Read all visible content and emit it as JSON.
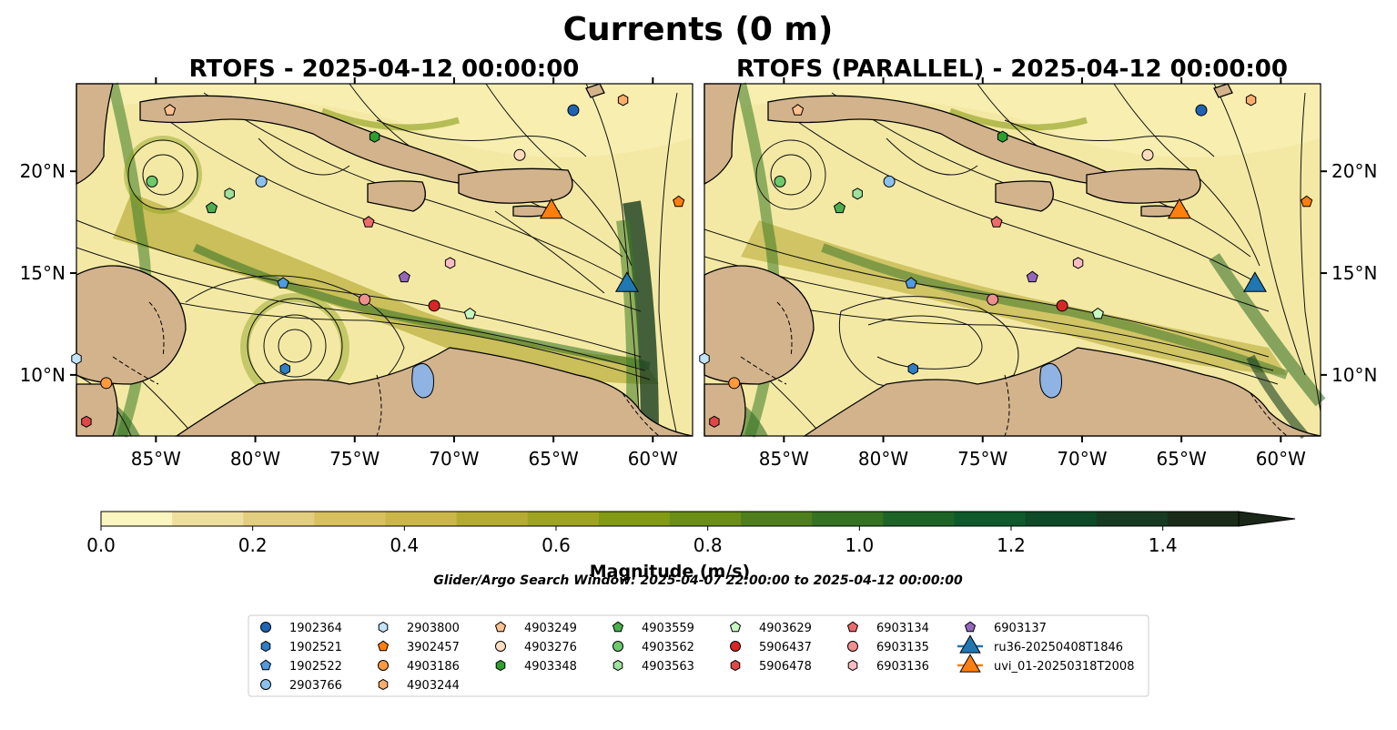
{
  "figure": {
    "title": "Currents (0 m)",
    "search_window": "Glider/Argo Search Window: 2025-04-07 22:00:00 to 2025-04-12 00:00:00"
  },
  "chart_data": {
    "type": "heatmap",
    "variable": "surface current magnitude with streamlines",
    "x_range": [
      -89.0,
      -58.0
    ],
    "y_range": [
      7.0,
      24.3
    ],
    "x_ticks": [
      -85,
      -80,
      -75,
      -70,
      -65,
      -60
    ],
    "x_tick_labels": [
      "85°W",
      "80°W",
      "75°W",
      "70°W",
      "65°W",
      "60°W"
    ],
    "y_ticks": [
      10,
      15,
      20
    ],
    "y_tick_labels": [
      "10°N",
      "15°N",
      "20°N"
    ],
    "panels": [
      {
        "title": "RTOFS - 2025-04-12 00:00:00",
        "yaxis_side": "left"
      },
      {
        "title": "RTOFS (PARALLEL) - 2025-04-12 00:00:00",
        "yaxis_side": "right"
      }
    ],
    "colorbar": {
      "label": "Magnitude (m/s)",
      "range": [
        0.0,
        1.5
      ],
      "extend": "max",
      "ticks": [
        0.0,
        0.2,
        0.4,
        0.6,
        0.8,
        1.0,
        1.2,
        1.4
      ],
      "tick_labels": [
        "0.0",
        "0.2",
        "0.4",
        "0.6",
        "0.8",
        "1.0",
        "1.2",
        "1.4"
      ],
      "colors": [
        "#fbf6c0",
        "#efdf9f",
        "#e3cd7e",
        "#d8c05f",
        "#cbb649",
        "#b6ab32",
        "#9ea421",
        "#829a14",
        "#6a8e16",
        "#4f7f1c",
        "#357222",
        "#1d6426",
        "#0e5a2a",
        "#0e4a27",
        "#173a22",
        "#1a2b1a"
      ],
      "extend_color": "#1a2617"
    },
    "series": [
      {
        "name": "1902364",
        "marker": "circle",
        "color": "#1f63b4",
        "lon": -64.0,
        "lat": 23.0
      },
      {
        "name": "1902521",
        "marker": "hexagon",
        "color": "#2e7ec6",
        "lon": -78.5,
        "lat": 10.3
      },
      {
        "name": "1902522",
        "marker": "pentagon",
        "color": "#4f9ae0",
        "lon": -78.6,
        "lat": 14.5
      },
      {
        "name": "2903766",
        "marker": "circle",
        "color": "#8cc1ee",
        "lon": -79.7,
        "lat": 19.5
      },
      {
        "name": "2903800",
        "marker": "hexagon",
        "color": "#c3e3fb",
        "lon": -89.0,
        "lat": 10.8
      },
      {
        "name": "3902457",
        "marker": "pentagon",
        "color": "#ff7f0e",
        "lon": -58.7,
        "lat": 18.5
      },
      {
        "name": "4903186",
        "marker": "circle",
        "color": "#ff9a3c",
        "lon": -87.5,
        "lat": 9.6
      },
      {
        "name": "4903244",
        "marker": "hexagon",
        "color": "#ffad6b",
        "lon": -61.5,
        "lat": 23.5
      },
      {
        "name": "4903249",
        "marker": "pentagon",
        "color": "#ffc08f",
        "lon": -84.3,
        "lat": 23.0
      },
      {
        "name": "4903276",
        "marker": "circle",
        "color": "#ffdcbf",
        "lon": -66.7,
        "lat": 20.8
      },
      {
        "name": "4903348",
        "marker": "hexagon",
        "color": "#2ca02c",
        "lon": -74.0,
        "lat": 21.7
      },
      {
        "name": "4903559",
        "marker": "pentagon",
        "color": "#4bb04b",
        "lon": -82.2,
        "lat": 18.2
      },
      {
        "name": "4903562",
        "marker": "circle",
        "color": "#6cc96c",
        "lon": -85.2,
        "lat": 19.5
      },
      {
        "name": "4903563",
        "marker": "hexagon",
        "color": "#9ee09e",
        "lon": -81.3,
        "lat": 18.9
      },
      {
        "name": "4903629",
        "marker": "pentagon",
        "color": "#c9f7c4",
        "lon": -69.2,
        "lat": 13.0
      },
      {
        "name": "5906437",
        "marker": "circle",
        "color": "#d62728",
        "lon": -71.0,
        "lat": 13.4
      },
      {
        "name": "5906478",
        "marker": "hexagon",
        "color": "#e04848",
        "lon": -88.5,
        "lat": 7.7
      },
      {
        "name": "6903134",
        "marker": "pentagon",
        "color": "#ec6b6b",
        "lon": -74.3,
        "lat": 17.5
      },
      {
        "name": "6903135",
        "marker": "circle",
        "color": "#f08f8f",
        "lon": -74.5,
        "lat": 13.7
      },
      {
        "name": "6903136",
        "marker": "hexagon",
        "color": "#f8bcc4",
        "lon": -70.2,
        "lat": 15.5
      },
      {
        "name": "6903137",
        "marker": "pentagon",
        "color": "#9467bd",
        "lon": -72.5,
        "lat": 14.8
      },
      {
        "name": "ru36-20250408T1846",
        "marker": "triangle",
        "color": "#1f77b4",
        "lon": -61.3,
        "lat": 14.5
      },
      {
        "name": "uvi_01-20250318T2008",
        "marker": "triangle",
        "color": "#ff7f0e",
        "lon": -65.1,
        "lat": 18.1
      }
    ]
  }
}
